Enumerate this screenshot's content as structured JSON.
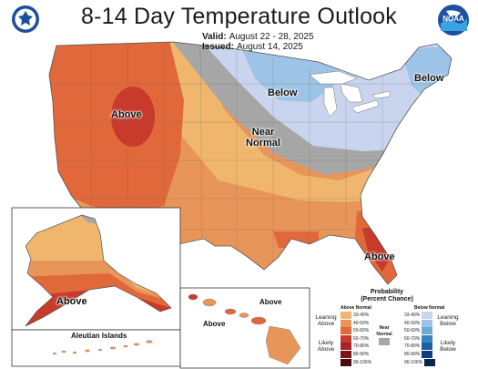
{
  "title": "8-14 Day Temperature Outlook",
  "valid": {
    "label": "Valid:",
    "value": "August 22 - 28, 2025"
  },
  "issued": {
    "label": "Issued:",
    "value": "August 14, 2025"
  },
  "logos": {
    "left": "doc-seal-icon",
    "right": "noaa-logo",
    "right_text": "NOAA"
  },
  "map_labels": {
    "above_west": "Above",
    "below_north": "Below",
    "below_northeast": "Below",
    "near_normal_line1": "Near",
    "near_normal_line2": "Normal",
    "above_florida": "Above",
    "above_alaska": "Above",
    "above_hawaii_1": "Above",
    "above_hawaii_2": "Above",
    "aleutian": "Aleutian Islands"
  },
  "legend": {
    "title_line1": "Probability",
    "title_line2": "(Percent Chance)",
    "above_header": "Above Normal",
    "below_header": "Below Normal",
    "near_normal_line1": "Near",
    "near_normal_line2": "Normal",
    "leaning_above_line1": "Leaning",
    "leaning_above_line2": "Above",
    "likely_above_line1": "Likely",
    "likely_above_line2": "Above",
    "leaning_below_line1": "Leaning",
    "leaning_below_line2": "Below",
    "likely_below_line1": "Likely",
    "likely_below_line2": "Below",
    "above_bins": [
      {
        "label": "33-40%",
        "color": "#f0b66e"
      },
      {
        "label": "40-50%",
        "color": "#e8955a"
      },
      {
        "label": "50-60%",
        "color": "#e0683b"
      },
      {
        "label": "60-70%",
        "color": "#c83a2c"
      },
      {
        "label": "70-80%",
        "color": "#a6232b"
      },
      {
        "label": "80-90%",
        "color": "#7a1418"
      },
      {
        "label": "90-100%",
        "color": "#4d0a0e"
      }
    ],
    "near_normal_color": "#a6a6a6",
    "below_bins": [
      {
        "label": "33-40%",
        "color": "#c9d5ee"
      },
      {
        "label": "40-50%",
        "color": "#9dc3e6"
      },
      {
        "label": "50-60%",
        "color": "#6aaad9"
      },
      {
        "label": "60-70%",
        "color": "#3a83c2"
      },
      {
        "label": "70-80%",
        "color": "#1c5fa3"
      },
      {
        "label": "80-90%",
        "color": "#123e7e"
      },
      {
        "label": "90-100%",
        "color": "#0a2350"
      }
    ]
  }
}
